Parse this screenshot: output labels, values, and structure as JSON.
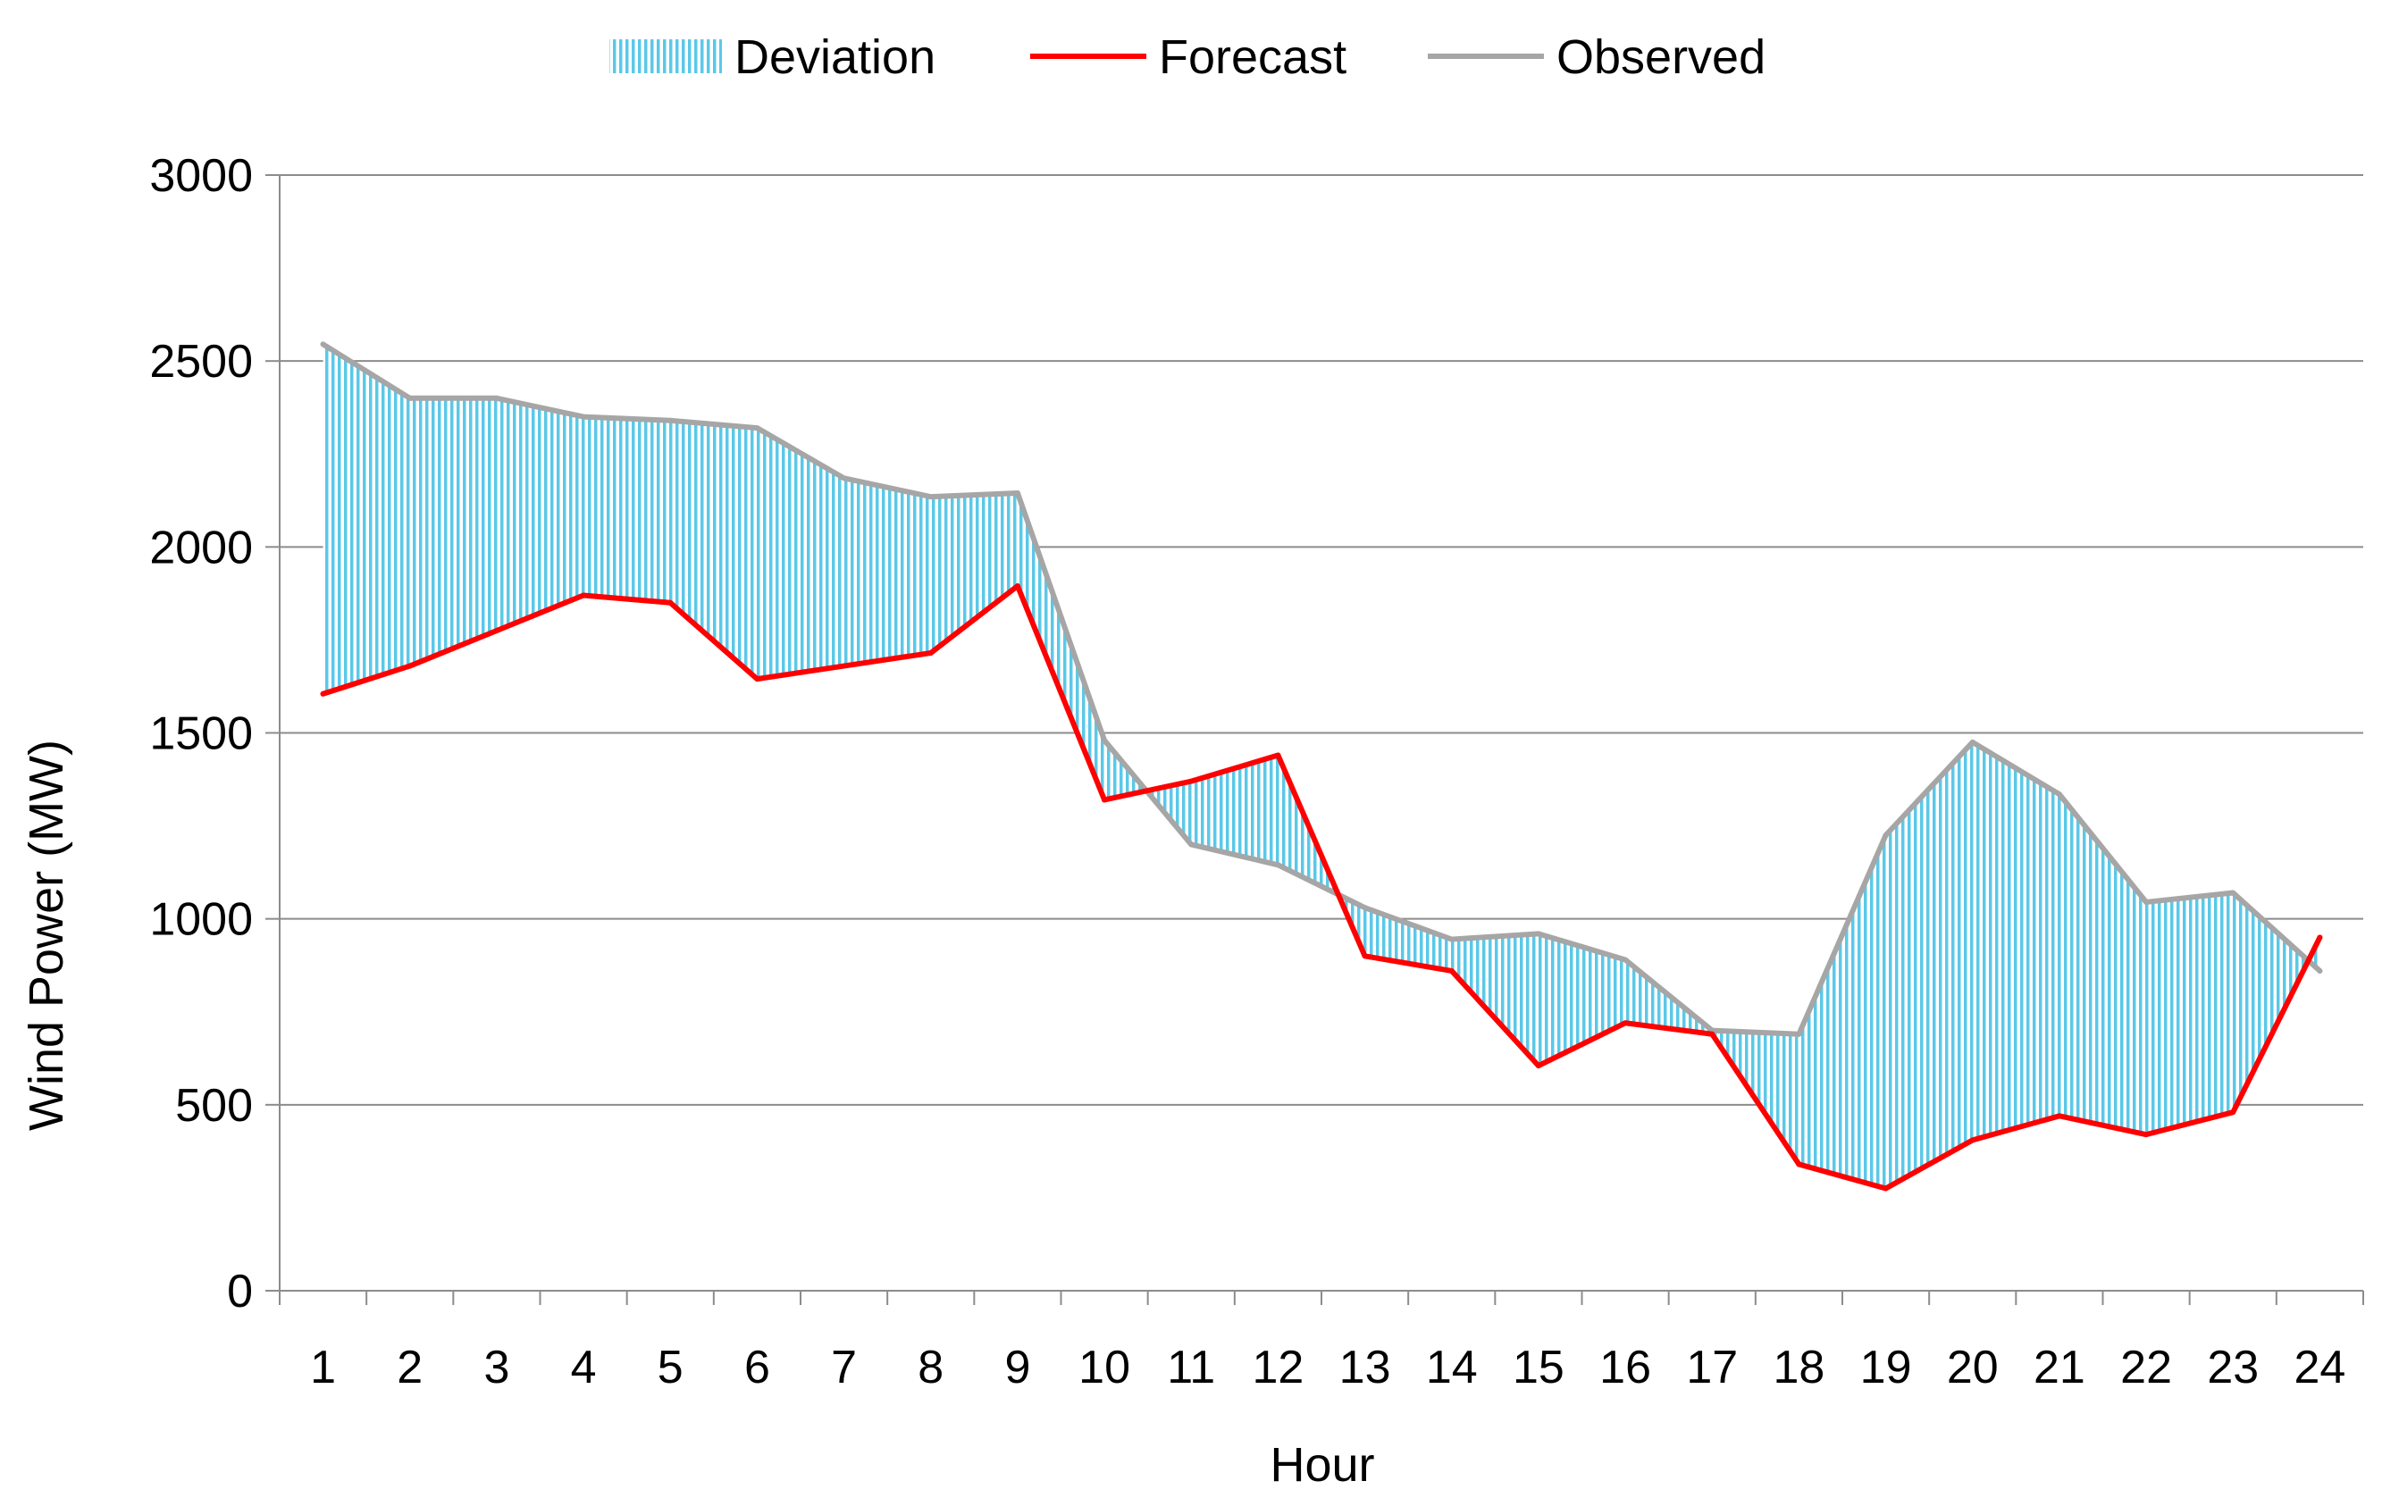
{
  "chart_data": {
    "type": "line",
    "title": "",
    "xlabel": "Hour",
    "ylabel": "Wind Power (MW)",
    "categories": [
      "1",
      "2",
      "3",
      "4",
      "5",
      "6",
      "7",
      "8",
      "9",
      "10",
      "11",
      "12",
      "13",
      "14",
      "15",
      "16",
      "17",
      "18",
      "19",
      "20",
      "21",
      "22",
      "23",
      "24"
    ],
    "ylim": [
      0,
      3000
    ],
    "yticks": [
      "0",
      "500",
      "1000",
      "1500",
      "2000",
      "2500",
      "3000"
    ],
    "grid": true,
    "legend_position": "top-center",
    "legend": [
      "Deviation",
      "Forecast",
      "Observed"
    ],
    "series": [
      {
        "name": "Forecast",
        "color": "#ff0000",
        "values": [
          1605,
          1680,
          1775,
          1870,
          1850,
          1645,
          1680,
          1715,
          1895,
          1320,
          1370,
          1440,
          900,
          860,
          605,
          720,
          690,
          340,
          275,
          405,
          470,
          420,
          480,
          950
        ]
      },
      {
        "name": "Observed",
        "color": "#a6a6a6",
        "values": [
          2545,
          2400,
          2400,
          2350,
          2340,
          2320,
          2185,
          2135,
          2145,
          1480,
          1200,
          1145,
          1030,
          945,
          960,
          890,
          700,
          690,
          1225,
          1475,
          1335,
          1045,
          1070,
          860
        ]
      }
    ],
    "deviation": {
      "name": "Deviation",
      "color": "#5bc8e8",
      "description": "band between Forecast and Observed"
    }
  }
}
